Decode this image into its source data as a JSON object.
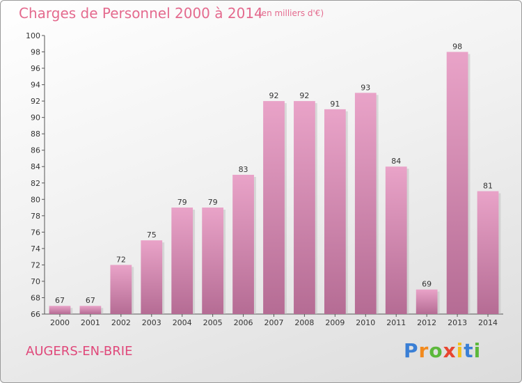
{
  "header": {
    "title": "Charges de Personnel 2000 à 2014",
    "subtitle": "(en milliers d'€)"
  },
  "footer": {
    "commune": "AUGERS-EN-BRIE",
    "brand": "Proxiti"
  },
  "colors": {
    "title": "#e46a8e",
    "commune": "#e0487a",
    "bar_light": "#e9a3c8",
    "bar_dark": "#b56c94",
    "brand_letters": [
      "#3a7fd5",
      "#f28a1e",
      "#5cb83b",
      "#e8452f",
      "#f2c01e",
      "#3a7fd5",
      "#5cb83b"
    ]
  },
  "chart_data": {
    "type": "bar",
    "title": "Charges de Personnel 2000 à 2014",
    "subtitle": "(en milliers d'€)",
    "categories": [
      "2000",
      "2001",
      "2002",
      "2003",
      "2004",
      "2005",
      "2006",
      "2007",
      "2008",
      "2009",
      "2010",
      "2011",
      "2012",
      "2013",
      "2014"
    ],
    "values": [
      67,
      67,
      72,
      75,
      79,
      79,
      83,
      92,
      92,
      91,
      93,
      84,
      69,
      98,
      81
    ],
    "ylim": [
      66,
      100
    ],
    "ytick_step": 2,
    "grid": false
  }
}
